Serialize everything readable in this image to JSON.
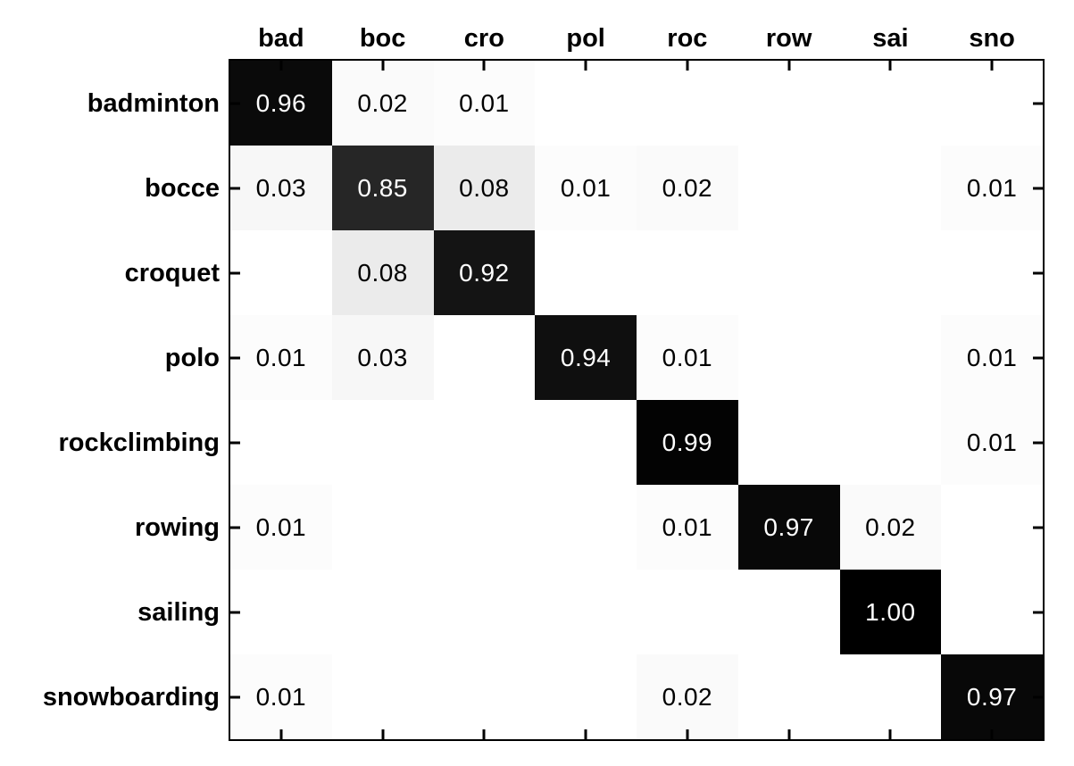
{
  "figure": {
    "background_color": "#ffffff",
    "axis_color": "#000000"
  },
  "chart_data": {
    "type": "heatmap",
    "subtype": "confusion-matrix",
    "title": "",
    "xlabel": "",
    "ylabel": "",
    "legend": "none",
    "grid": false,
    "value_range": [
      0,
      1
    ],
    "colormap": {
      "description": "reversed grayscale: 0 = white, 1 = black",
      "low": "#ffffff",
      "high": "#000000"
    },
    "x_tick_labels": [
      "bad",
      "boc",
      "cro",
      "pol",
      "roc",
      "row",
      "sai",
      "sno"
    ],
    "y_tick_labels": [
      "badminton",
      "bocce",
      "croquet",
      "polo",
      "rockclimbing",
      "rowing",
      "sailing",
      "snowboarding"
    ],
    "matrix": [
      [
        0.96,
        0.02,
        0.01,
        null,
        null,
        null,
        null,
        null
      ],
      [
        0.03,
        0.85,
        0.08,
        0.01,
        0.02,
        null,
        null,
        0.01
      ],
      [
        null,
        0.08,
        0.92,
        null,
        null,
        null,
        null,
        null
      ],
      [
        0.01,
        0.03,
        null,
        0.94,
        0.01,
        null,
        null,
        0.01
      ],
      [
        null,
        null,
        null,
        null,
        0.99,
        null,
        null,
        0.01
      ],
      [
        0.01,
        null,
        null,
        null,
        0.01,
        0.97,
        0.02,
        null
      ],
      [
        null,
        null,
        null,
        null,
        null,
        null,
        1.0,
        null
      ],
      [
        0.01,
        null,
        null,
        null,
        0.02,
        null,
        null,
        0.97
      ]
    ],
    "cell_text_format": "2 decimal places, blank when no value",
    "cell_text_color_rule": "white on dark cells (value > 0.5), black otherwise"
  }
}
